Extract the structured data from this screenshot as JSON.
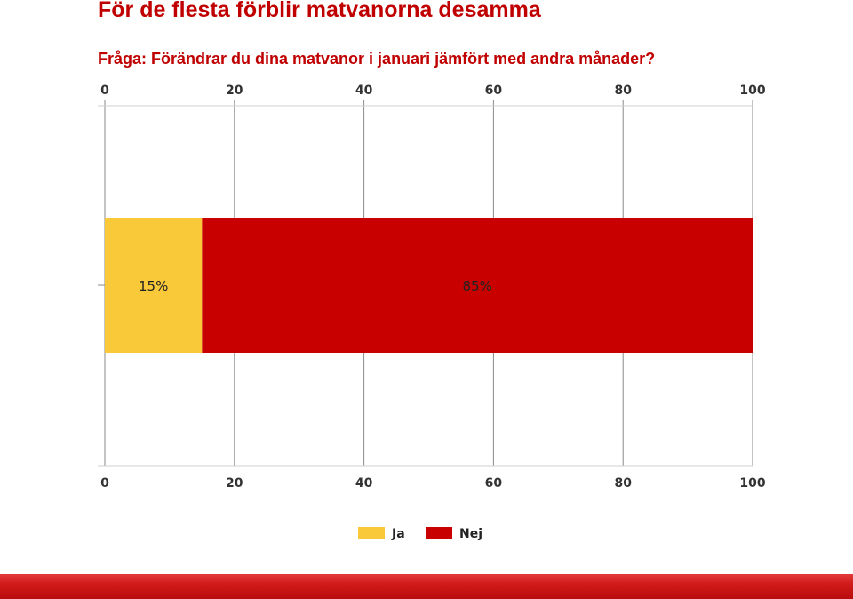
{
  "header": {
    "title": "För de flesta förblir matvanorna desamma",
    "subtitle": "Fråga: Förändrar du dina matvanor i januari jämfört med andra månader?"
  },
  "chart_data": {
    "type": "bar",
    "orientation": "horizontal",
    "stacked": true,
    "title": "",
    "xlabel": "",
    "ylabel": "",
    "xlim": [
      0,
      100
    ],
    "xticks": [
      0,
      20,
      40,
      60,
      80,
      100
    ],
    "axis_labels_top_and_bottom": true,
    "grid": true,
    "legend_position": "bottom-center",
    "categories": [
      ""
    ],
    "series": [
      {
        "name": "Ja",
        "values": [
          15
        ],
        "label": "15%",
        "color": "#f9c93a"
      },
      {
        "name": "Nej",
        "values": [
          85
        ],
        "label": "85%",
        "color": "#c80000"
      }
    ]
  },
  "colors": {
    "title": "#c00000",
    "footer": "#d11a1a"
  }
}
